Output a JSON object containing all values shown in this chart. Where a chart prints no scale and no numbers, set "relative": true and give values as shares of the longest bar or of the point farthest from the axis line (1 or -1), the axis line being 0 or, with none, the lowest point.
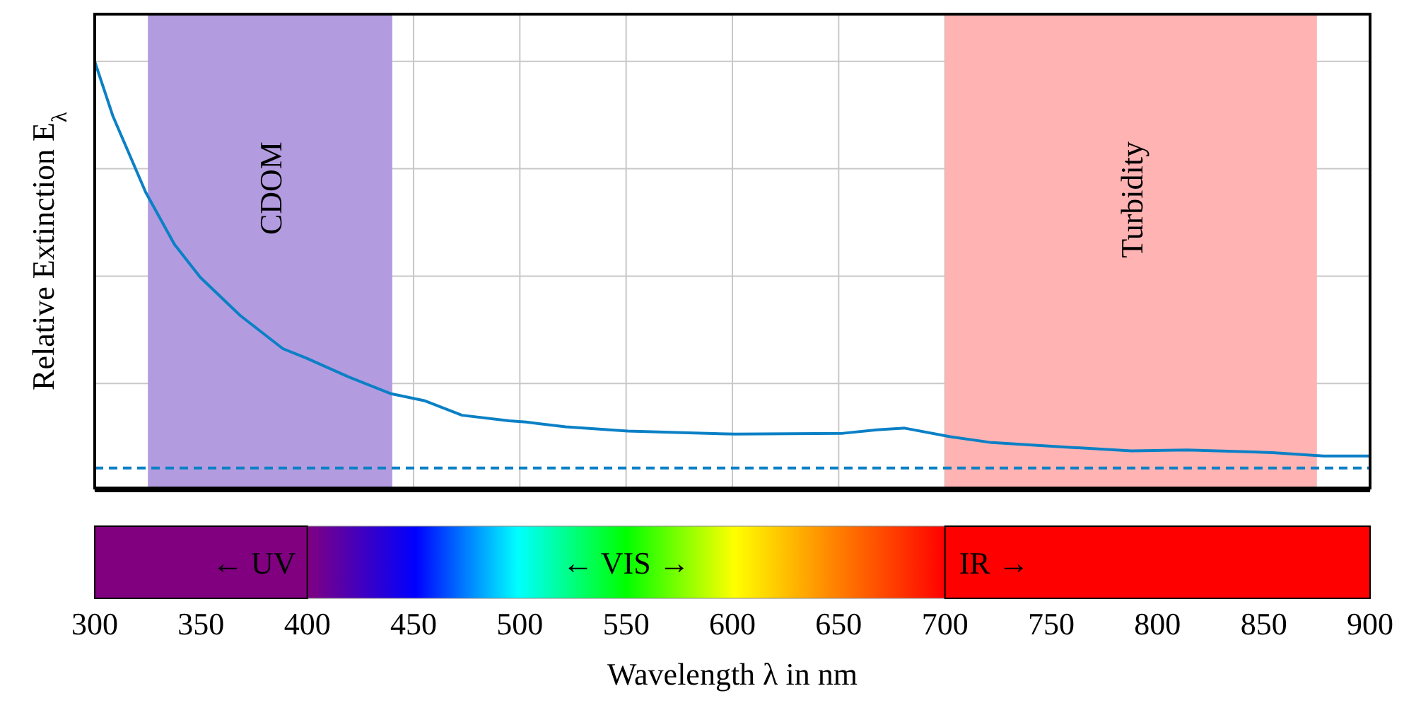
{
  "chart_data": {
    "type": "line",
    "relative": true,
    "xlabel": "Wavelength λ in nm",
    "ylabel": "Relative Extinction E$_{λ}$",
    "xlim": [
      300,
      900
    ],
    "xticks": [
      300,
      350,
      400,
      450,
      500,
      550,
      600,
      650,
      700,
      750,
      800,
      850,
      900
    ],
    "grid": true,
    "marker": "none",
    "series": [
      {
        "color": "#0b80c5",
        "line_style": "solid",
        "x": [
          300,
          308.6,
          324,
          337.5,
          349.7,
          368.5,
          388.5,
          399.6,
          419.6,
          439.5,
          455,
          472.8,
          495,
          503,
          521.6,
          550.8,
          601.4,
          652,
          668,
          681,
          702.5,
          721,
          753,
          787.7,
          814,
          854,
          878,
          900
        ],
        "values": [
          1.0,
          0.872,
          0.695,
          0.574,
          0.497,
          0.408,
          0.331,
          0.309,
          0.265,
          0.226,
          0.21,
          0.176,
          0.163,
          0.16,
          0.149,
          0.139,
          0.132,
          0.134,
          0.142,
          0.146,
          0.126,
          0.113,
          0.103,
          0.093,
          0.095,
          0.089,
          0.081,
          0.081
        ]
      },
      {
        "color": "#0b80c5",
        "line_style": "dashed",
        "x": [
          300,
          350,
          400,
          500,
          600,
          700,
          800,
          900
        ],
        "values": [
          0.053,
          0.053,
          0.053,
          0.053,
          0.053,
          0.053,
          0.053,
          0.053
        ]
      }
    ],
    "bands": [
      {
        "axis": "x",
        "from": 325,
        "to": 440,
        "label": "CDOM",
        "color": "#b39be0"
      },
      {
        "axis": "x",
        "from": 700,
        "to": 875,
        "label": "Turbidity",
        "color": "#ffb3b3"
      }
    ],
    "annotations": [
      "← UV",
      "← VIS →",
      "IR →"
    ]
  }
}
